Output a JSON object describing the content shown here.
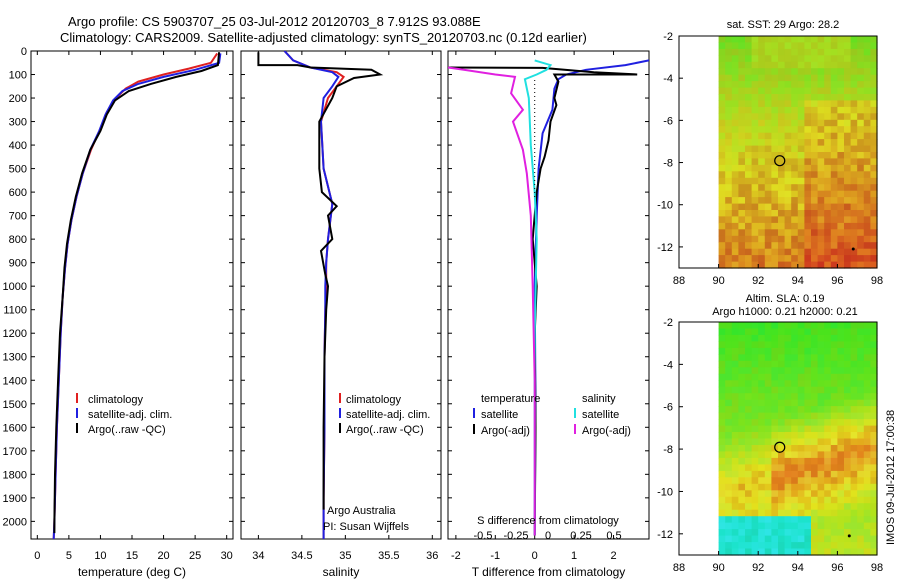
{
  "header": {
    "line1": "Argo profile: CS 5903707_25 03-Jul-2012 20120703_8 7.912S 93.088E",
    "line2": "Climatology: CARS2009. Satellite-adjusted climatology: synTS_20120703.nc (0.12d earlier)"
  },
  "timestamp_label": "IMOS 09-Jul-2012 17:00:38",
  "colors": {
    "climatology": "#e02020",
    "satellite": "#2020e0",
    "argo": "#000000",
    "cyan": "#20e0e0",
    "magenta": "#e020e0"
  },
  "chart_data": [
    {
      "type": "line",
      "id": "temperature",
      "xlabel": "temperature (deg C)",
      "ylabel": "",
      "xlim": [
        -1,
        31
      ],
      "ylim": [
        2075,
        0
      ],
      "xticks": [
        0,
        5,
        10,
        15,
        20,
        25,
        30
      ],
      "yticks": [
        0,
        100,
        200,
        300,
        400,
        500,
        600,
        700,
        800,
        900,
        1000,
        1100,
        1200,
        1300,
        1400,
        1500,
        1600,
        1700,
        1800,
        1900,
        2000
      ],
      "legend": [
        "climatology",
        "satellite-adj. clim.",
        "Argo(..raw -QC)"
      ],
      "series": [
        {
          "name": "climatology",
          "color": "#e02020",
          "x": [
            28.5,
            27.5,
            24,
            20,
            16,
            14,
            12.5,
            11,
            10,
            8.5,
            7.2,
            6.2,
            5.4,
            4.8,
            4.4,
            4.0,
            3.7,
            3.4,
            3.1,
            2.9,
            2.7,
            2.6
          ],
          "y": [
            10,
            50,
            75,
            100,
            130,
            160,
            200,
            260,
            330,
            420,
            520,
            620,
            720,
            820,
            920,
            1050,
            1200,
            1400,
            1600,
            1800,
            2000,
            2075
          ]
        },
        {
          "name": "satellite-adj. clim.",
          "color": "#2020e0",
          "x": [
            29,
            28.8,
            25,
            20,
            16,
            13.5,
            12,
            10.8,
            9.8,
            8.4,
            7.2,
            6.2,
            5.4,
            4.8,
            4.4,
            4.0,
            3.7,
            3.4,
            3.1,
            2.9,
            2.7,
            2.6
          ],
          "y": [
            10,
            50,
            80,
            110,
            140,
            170,
            210,
            270,
            340,
            420,
            520,
            620,
            720,
            820,
            920,
            1050,
            1200,
            1400,
            1600,
            1800,
            2000,
            2075
          ]
        },
        {
          "name": "Argo(..raw -QC)",
          "color": "#000000",
          "x": [
            28.8,
            28.6,
            26,
            22,
            18,
            14.5,
            12.3,
            11,
            10,
            8.4,
            7.1,
            6.1,
            5.3,
            4.7,
            4.3,
            4.0,
            3.6,
            3.3,
            3.0,
            2.8,
            2.7,
            2.7
          ],
          "y": [
            5,
            60,
            85,
            110,
            140,
            170,
            210,
            270,
            340,
            420,
            520,
            620,
            720,
            820,
            920,
            1050,
            1200,
            1400,
            1600,
            1800,
            2000,
            2050
          ]
        }
      ]
    },
    {
      "type": "line",
      "id": "salinity",
      "xlabel": "salinity",
      "xlim": [
        33.8,
        36.1
      ],
      "ylim": [
        2075,
        0
      ],
      "xticks": [
        34,
        34.5,
        35,
        35.5,
        36
      ],
      "legend": [
        "climatology",
        "satellite-adj. clim.",
        "Argo(..raw -QC)"
      ],
      "annotations": [
        "Argo Australia",
        "PI: Susan Wijffels"
      ],
      "series": [
        {
          "name": "climatology",
          "color": "#e02020",
          "x": [
            34.3,
            34.4,
            34.6,
            34.9,
            34.98,
            34.9,
            34.8,
            34.72,
            34.75,
            34.85,
            34.8,
            34.78,
            34.78,
            34.77,
            34.76,
            34.76,
            34.75,
            34.75
          ],
          "y": [
            0,
            40,
            70,
            90,
            110,
            150,
            200,
            300,
            500,
            650,
            800,
            900,
            1000,
            1100,
            1300,
            1600,
            1900,
            2075
          ]
        },
        {
          "name": "satellite-adj. clim.",
          "color": "#2020e0",
          "x": [
            34.3,
            34.4,
            34.6,
            34.85,
            34.92,
            34.85,
            34.75,
            34.72,
            34.75,
            34.85,
            34.8,
            34.78,
            34.77,
            34.77,
            34.76,
            34.76,
            34.75,
            34.75
          ],
          "y": [
            0,
            40,
            70,
            90,
            110,
            150,
            200,
            300,
            500,
            650,
            800,
            900,
            1000,
            1100,
            1300,
            1600,
            1900,
            2075
          ]
        },
        {
          "name": "Argo(..raw -QC)",
          "color": "#000000",
          "x": [
            34.0,
            34.0,
            34.45,
            34.6,
            35.3,
            35.4,
            35.1,
            34.9,
            34.85,
            34.7,
            34.7,
            34.73,
            34.9,
            34.8,
            34.85,
            34.72,
            34.77,
            34.8,
            34.78,
            34.76,
            34.75,
            34.75
          ],
          "y": [
            5,
            60,
            60,
            70,
            80,
            100,
            115,
            150,
            200,
            300,
            500,
            600,
            660,
            700,
            800,
            850,
            950,
            1000,
            1100,
            1300,
            1600,
            1950
          ]
        }
      ]
    },
    {
      "type": "line",
      "id": "differences",
      "xlabel": "T difference from climatology",
      "title_bottom": "S difference from climatology",
      "xlim": [
        -2.2,
        2.9
      ],
      "ylim": [
        2075,
        0
      ],
      "xticks": [
        -2,
        -1,
        0,
        1,
        2
      ],
      "s_ticks": [
        "-0.5",
        "-0.25",
        "0",
        "0.25",
        "0.5"
      ],
      "legend_temperature": {
        "title": "temperature",
        "items": [
          "satellite",
          "Argo(-adj)"
        ]
      },
      "legend_salinity": {
        "title": "salinity",
        "items": [
          "satellite",
          "Argo(-adj)"
        ]
      },
      "series": [
        {
          "name": "T satellite",
          "color": "#2020e0",
          "x": [
            2.9,
            2.3,
            1.3,
            0.8,
            0.6,
            0.5,
            0.45,
            0.2,
            0.1,
            0.05,
            0.0,
            0.02,
            0.0
          ],
          "y": [
            40,
            60,
            80,
            100,
            120,
            160,
            250,
            350,
            500,
            700,
            1000,
            1500,
            2060
          ]
        },
        {
          "name": "T Argo(-adj)",
          "color": "#000000",
          "x": [
            -2.2,
            0.2,
            1.5,
            2.6,
            0.5,
            0.6,
            0.5,
            0.55,
            0.4,
            0.35,
            0.25,
            0.15,
            0.05,
            0.0,
            -0.05,
            0.05,
            0.0,
            0.02,
            0.0
          ],
          "y": [
            70,
            72,
            90,
            100,
            100,
            130,
            200,
            230,
            300,
            380,
            450,
            500,
            600,
            700,
            800,
            1000,
            1200,
            1600,
            2060
          ]
        },
        {
          "name": "S satellite",
          "color": "#20e0e0",
          "x": [
            0.0,
            0.4,
            0.3,
            0.05,
            -0.25,
            -0.15,
            -0.1,
            0.0,
            0.05,
            0.0,
            0.0
          ],
          "y": [
            40,
            60,
            80,
            100,
            120,
            200,
            400,
            600,
            800,
            1200,
            2060
          ]
        },
        {
          "name": "S Argo(-adj)",
          "color": "#e020e0",
          "x": [
            -2.2,
            -1.8,
            -1.0,
            -0.5,
            -0.6,
            -0.3,
            -0.55,
            -0.3,
            -0.2,
            -0.1,
            -0.05,
            0.0,
            0.0
          ],
          "y": [
            70,
            80,
            100,
            110,
            180,
            250,
            300,
            420,
            520,
            700,
            1000,
            1400,
            2060
          ]
        }
      ]
    },
    {
      "type": "heatmap",
      "id": "sst-map",
      "title": "sat. SST: 29 Argo: 28.2",
      "xlim": [
        88,
        98
      ],
      "ylim": [
        -13,
        -2
      ],
      "xticks": [
        88,
        90,
        92,
        94,
        96,
        98
      ],
      "yticks": [
        -2,
        -4,
        -6,
        -8,
        -10,
        -12
      ],
      "argo_position": [
        93.088,
        -7.912
      ],
      "marker_point": [
        96.8,
        -12.1
      ]
    },
    {
      "type": "heatmap",
      "id": "sla-map",
      "title": "Altim. SLA: 0.19",
      "subtitle": "Argo h1000: 0.21 h2000: 0.21",
      "xlim": [
        88,
        98
      ],
      "ylim": [
        -13,
        -2
      ],
      "xticks": [
        88,
        90,
        92,
        94,
        96,
        98
      ],
      "yticks": [
        -2,
        -4,
        -6,
        -8,
        -10,
        -12
      ],
      "argo_position": [
        93.088,
        -7.912
      ],
      "marker_point": [
        96.6,
        -12.1
      ]
    }
  ]
}
